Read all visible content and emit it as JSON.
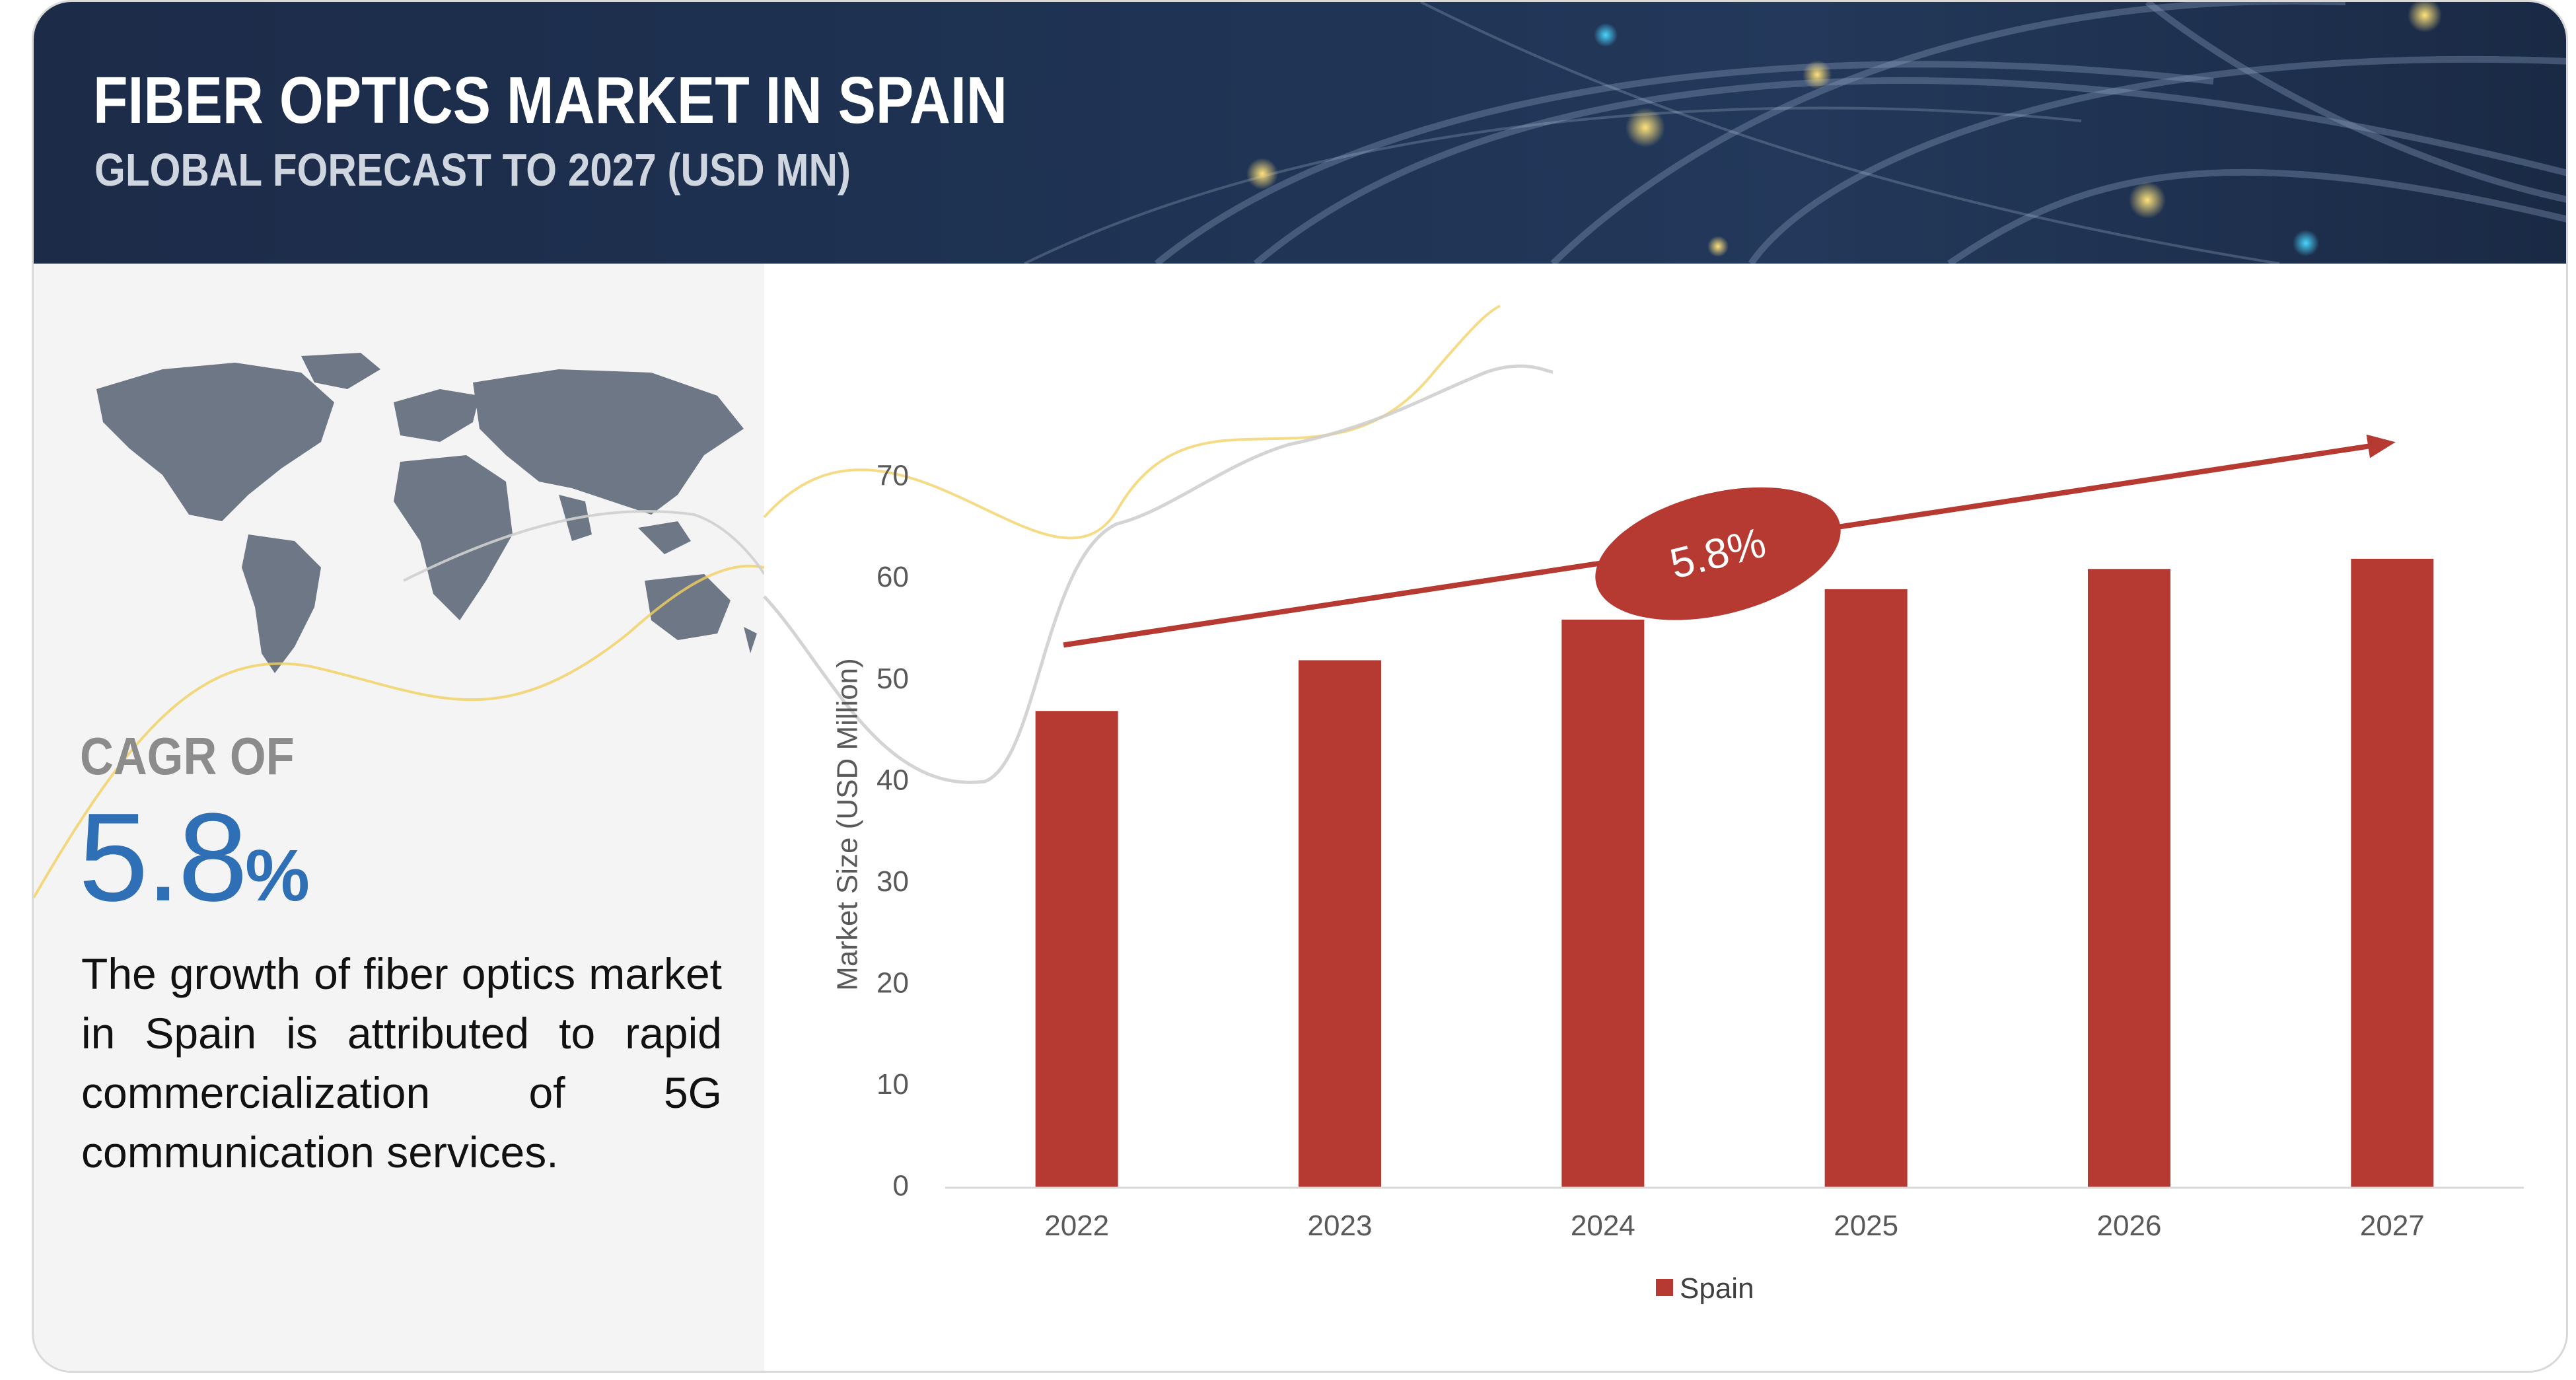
{
  "header": {
    "title": "FIBER OPTICS MARKET IN SPAIN",
    "subtitle": "GLOBAL FORECAST TO 2027 (USD MN)"
  },
  "sidebar": {
    "cagr_label": "CAGR OF",
    "cagr_value": "5.8",
    "cagr_unit": "%",
    "description": "The  growth of fiber optics market in Spain is attributed to rapid commercialization of 5G communication services."
  },
  "colors": {
    "bar": "#b63a32",
    "accent_blue": "#2e6fb6",
    "banner": "#1f3354",
    "panel": "#f4f4f4"
  },
  "chart_data": {
    "type": "bar",
    "categories": [
      "2022",
      "2023",
      "2024",
      "2025",
      "2026",
      "2027"
    ],
    "series": [
      {
        "name": "Spain",
        "values": [
          47,
          52,
          56,
          59,
          61,
          62
        ]
      }
    ],
    "ylabel": "Market Size (USD Million)",
    "xlabel": "",
    "ylim": [
      0,
      70
    ],
    "yticks": [
      0,
      10,
      20,
      30,
      40,
      50,
      60,
      70
    ],
    "grid": false,
    "legend": "bottom-center",
    "annotation": {
      "text": "5.8%",
      "type": "cagr-arrow"
    }
  }
}
